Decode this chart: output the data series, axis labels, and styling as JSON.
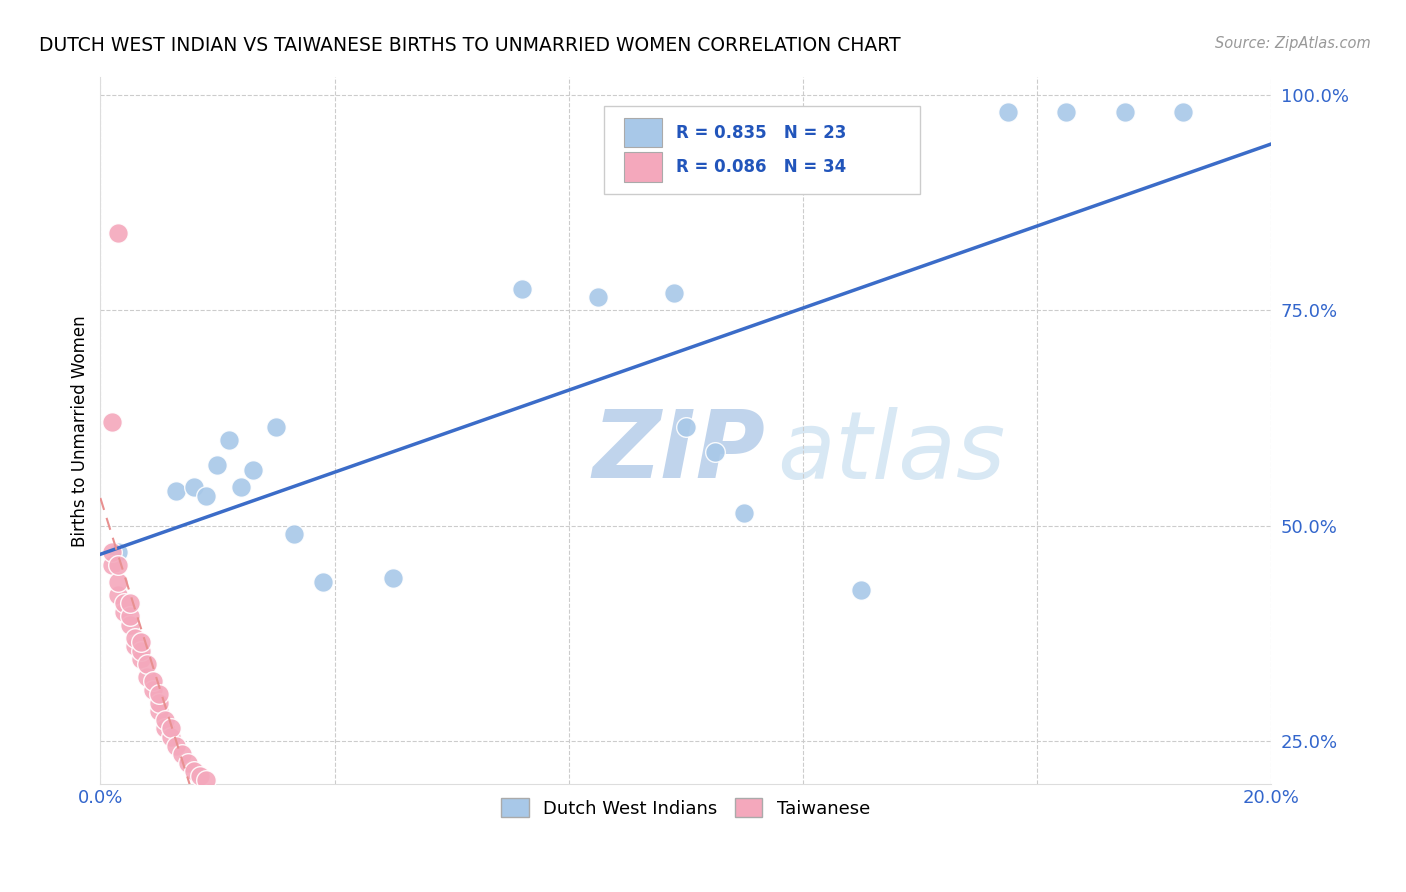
{
  "title": "DUTCH WEST INDIAN VS TAIWANESE BIRTHS TO UNMARRIED WOMEN CORRELATION CHART",
  "source": "Source: ZipAtlas.com",
  "ylabel": "Births to Unmarried Women",
  "xlim": [
    0.0,
    0.2
  ],
  "ylim": [
    0.2,
    1.02
  ],
  "xticks": [
    0.0,
    0.04,
    0.08,
    0.12,
    0.16,
    0.2
  ],
  "yticks": [
    0.25,
    0.5,
    0.75,
    1.0
  ],
  "ytick_labels": [
    "25.0%",
    "50.0%",
    "75.0%",
    "100.0%"
  ],
  "xtick_labels": [
    "0.0%",
    "",
    "",
    "",
    "",
    "20.0%"
  ],
  "blue_R": 0.835,
  "blue_N": 23,
  "pink_R": 0.086,
  "pink_N": 34,
  "blue_color": "#A8C8E8",
  "pink_color": "#F4A8BC",
  "blue_line_color": "#3B6CC8",
  "pink_line_color": "#E89090",
  "watermark_zip": "ZIP",
  "watermark_atlas": "atlas",
  "watermark_color": "#D0DEF0",
  "blue_x": [
    0.003,
    0.013,
    0.016,
    0.018,
    0.02,
    0.022,
    0.024,
    0.026,
    0.03,
    0.033,
    0.038,
    0.05,
    0.072,
    0.085,
    0.098,
    0.1,
    0.105,
    0.11,
    0.13,
    0.155,
    0.165,
    0.175,
    0.185
  ],
  "blue_y": [
    0.47,
    0.54,
    0.545,
    0.535,
    0.57,
    0.6,
    0.545,
    0.565,
    0.615,
    0.49,
    0.435,
    0.44,
    0.775,
    0.765,
    0.77,
    0.615,
    0.585,
    0.515,
    0.425,
    0.98,
    0.98,
    0.98,
    0.98
  ],
  "pink_x": [
    0.002,
    0.002,
    0.003,
    0.003,
    0.003,
    0.004,
    0.004,
    0.005,
    0.005,
    0.005,
    0.006,
    0.006,
    0.007,
    0.007,
    0.007,
    0.008,
    0.008,
    0.009,
    0.009,
    0.01,
    0.01,
    0.01,
    0.011,
    0.011,
    0.012,
    0.012,
    0.013,
    0.014,
    0.015,
    0.016,
    0.017,
    0.018,
    0.003,
    0.002
  ],
  "pink_y": [
    0.455,
    0.47,
    0.42,
    0.435,
    0.455,
    0.4,
    0.41,
    0.385,
    0.395,
    0.41,
    0.36,
    0.37,
    0.345,
    0.355,
    0.365,
    0.325,
    0.34,
    0.31,
    0.32,
    0.285,
    0.295,
    0.305,
    0.265,
    0.275,
    0.255,
    0.265,
    0.245,
    0.235,
    0.225,
    0.215,
    0.21,
    0.205,
    0.84,
    0.62
  ]
}
